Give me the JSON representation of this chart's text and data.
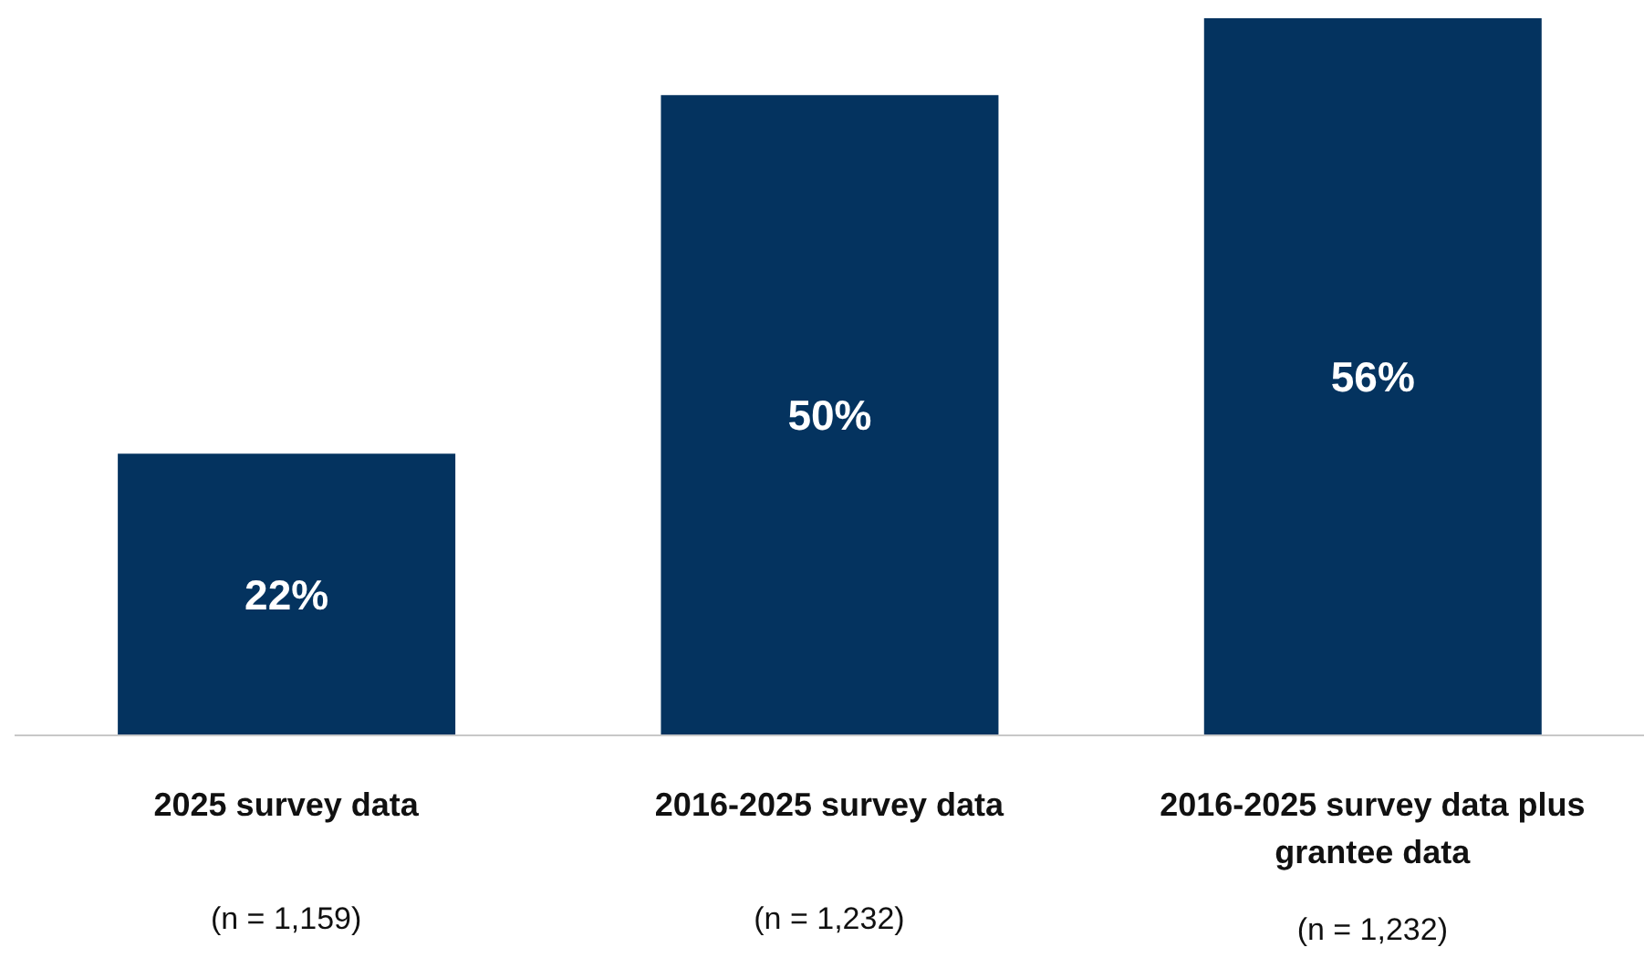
{
  "chart_data": {
    "type": "bar",
    "categories": [
      "2025 survey data",
      "2016-2025 survey data",
      "2016-2025 survey data plus grantee data"
    ],
    "values": [
      22,
      50,
      56
    ],
    "value_labels": [
      "22%",
      "50%",
      "56%"
    ],
    "color": "#04335f",
    "grid": false,
    "legend": false,
    "annotations": [
      "(n = 1,159)",
      "(n = 1,232)",
      "(n = 1,232)"
    ]
  }
}
